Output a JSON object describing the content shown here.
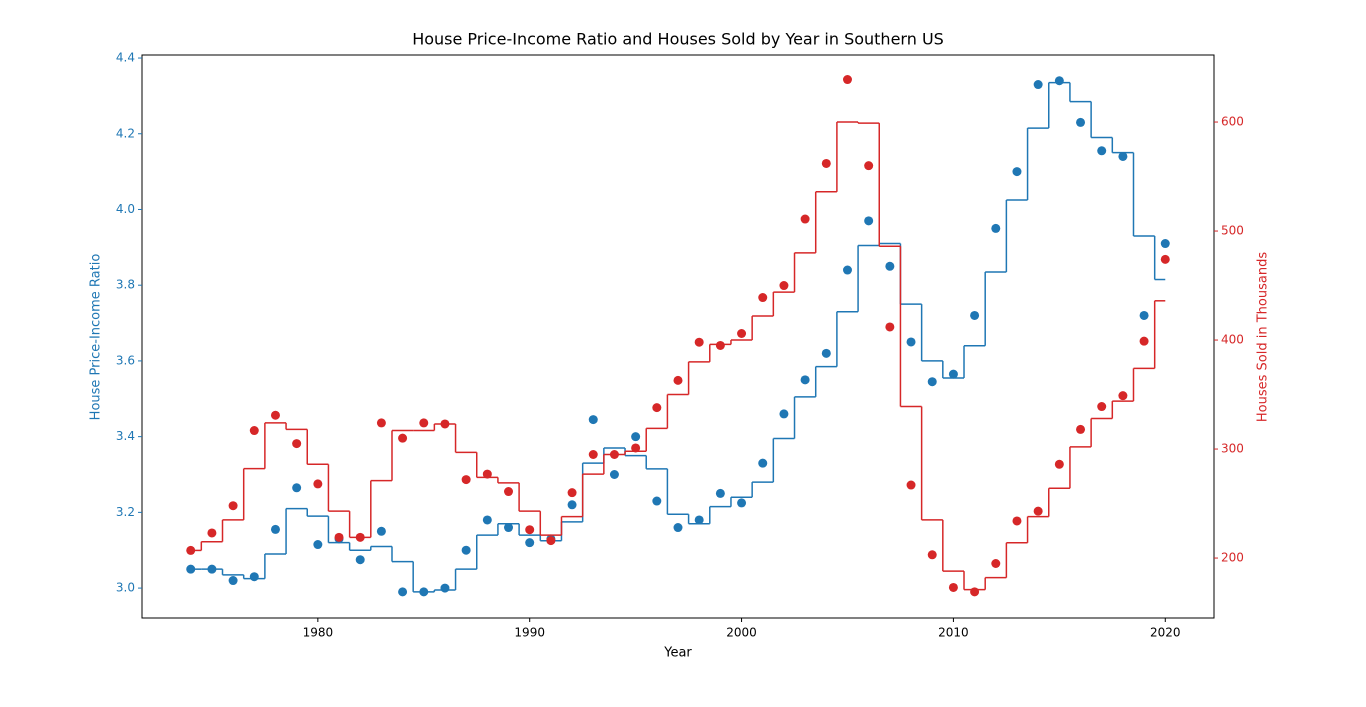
{
  "chart_data": {
    "type": "scatter-step",
    "title": "House Price-Income Ratio and Houses Sold by Year in Southern US",
    "x_label": "Year",
    "y_label": "House Price-Income Ratio",
    "y2_label": "Houses Sold in Thousands",
    "x": [
      1974,
      1975,
      1976,
      1977,
      1978,
      1979,
      1980,
      1981,
      1982,
      1983,
      1984,
      1985,
      1986,
      1987,
      1988,
      1989,
      1990,
      1991,
      1992,
      1993,
      1994,
      1995,
      1996,
      1997,
      1998,
      1999,
      2000,
      2001,
      2002,
      2003,
      2004,
      2005,
      2006,
      2007,
      2008,
      2009,
      2010,
      2011,
      2012,
      2013,
      2014,
      2015,
      2016,
      2017,
      2018,
      2019,
      2020
    ],
    "series": [
      {
        "color": "#1f77b4",
        "axis": "y",
        "values": [
          3.05,
          3.05,
          3.02,
          3.03,
          3.155,
          3.265,
          3.115,
          3.13,
          3.075,
          3.15,
          2.99,
          2.99,
          3.0,
          3.1,
          3.18,
          3.16,
          3.12,
          3.13,
          3.22,
          3.445,
          3.3,
          3.4,
          3.23,
          3.16,
          3.18,
          3.25,
          3.225,
          3.33,
          3.46,
          3.55,
          3.62,
          3.84,
          3.97,
          3.85,
          3.65,
          3.545,
          3.565,
          3.72,
          3.95,
          4.1,
          4.33,
          4.34,
          4.23,
          4.155,
          4.14,
          3.72,
          3.91
        ],
        "smoothed": [
          3.05,
          3.05,
          3.035,
          3.025,
          3.09,
          3.21,
          3.19,
          3.12,
          3.1,
          3.11,
          3.07,
          2.99,
          2.995,
          3.05,
          3.14,
          3.17,
          3.14,
          3.125,
          3.175,
          3.33,
          3.37,
          3.35,
          3.315,
          3.195,
          3.17,
          3.215,
          3.24,
          3.28,
          3.395,
          3.505,
          3.585,
          3.73,
          3.905,
          3.91,
          3.75,
          3.6,
          3.555,
          3.64,
          3.835,
          4.025,
          4.215,
          4.335,
          4.285,
          4.19,
          4.15,
          3.93,
          3.815
        ]
      },
      {
        "color": "#d62728",
        "axis": "y2",
        "values": [
          207,
          223,
          248,
          317,
          331,
          305,
          268,
          219,
          219,
          324,
          310,
          324,
          323,
          272,
          277,
          261,
          226,
          216,
          260,
          295,
          295,
          301,
          338,
          363,
          398,
          395,
          406,
          439,
          450,
          511,
          562,
          639,
          560,
          412,
          267,
          203,
          173,
          169,
          195,
          234,
          243,
          286,
          318,
          339,
          349,
          399,
          474
        ],
        "smoothed": [
          207,
          215,
          235,
          282,
          324,
          318,
          286,
          243,
          219,
          271,
          317,
          317,
          323,
          297,
          274,
          269,
          243,
          221,
          238,
          277,
          295,
          298,
          319,
          350,
          380,
          396,
          400,
          422,
          444,
          480,
          536,
          600,
          599,
          486,
          339,
          235,
          188,
          171,
          182,
          214,
          238,
          264,
          302,
          328,
          344,
          374,
          436
        ]
      }
    ],
    "xlim": [
      1971.7,
      2022.3
    ],
    "xticks": [
      1980,
      1990,
      2000,
      2010,
      2020
    ],
    "ylim": [
      2.921,
      4.408
    ],
    "yticks": [
      {
        "value": 3.0,
        "label": "3.0"
      },
      {
        "value": 3.2,
        "label": "3.2"
      },
      {
        "value": 3.4,
        "label": "3.4"
      },
      {
        "value": 3.6,
        "label": "3.6"
      },
      {
        "value": 3.8,
        "label": "3.8"
      },
      {
        "value": 4.0,
        "label": "4.0"
      },
      {
        "value": 4.2,
        "label": "4.2"
      },
      {
        "value": 4.4,
        "label": "4.4"
      }
    ],
    "y2lim": [
      145,
      661.5
    ],
    "y2ticks": [
      200,
      300,
      400,
      500,
      600
    ]
  }
}
